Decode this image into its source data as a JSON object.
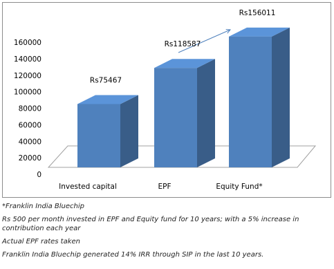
{
  "chart_data": {
    "type": "bar3d",
    "categories": [
      "Invested capital",
      "EPF",
      "Equity Fund*"
    ],
    "values": [
      75467,
      118587,
      156011
    ],
    "value_labels": [
      "Rs75467",
      "Rs118587",
      "Rs156011"
    ],
    "color": "#4f81bd",
    "ylim": [
      0,
      160000
    ],
    "yticks": [
      0,
      20000,
      40000,
      60000,
      80000,
      100000,
      120000,
      140000,
      160000
    ],
    "grid": false
  },
  "notes": [
    "*Franklin India Bluechip",
    "Rs 500 per month invested in EPF and Equity fund for 10 years; with a 5% increase in contribution each year",
    "Actual EPF rates taken",
    "Franklin India Bluechip generated 14% IRR through SIP in the last 10 years."
  ]
}
